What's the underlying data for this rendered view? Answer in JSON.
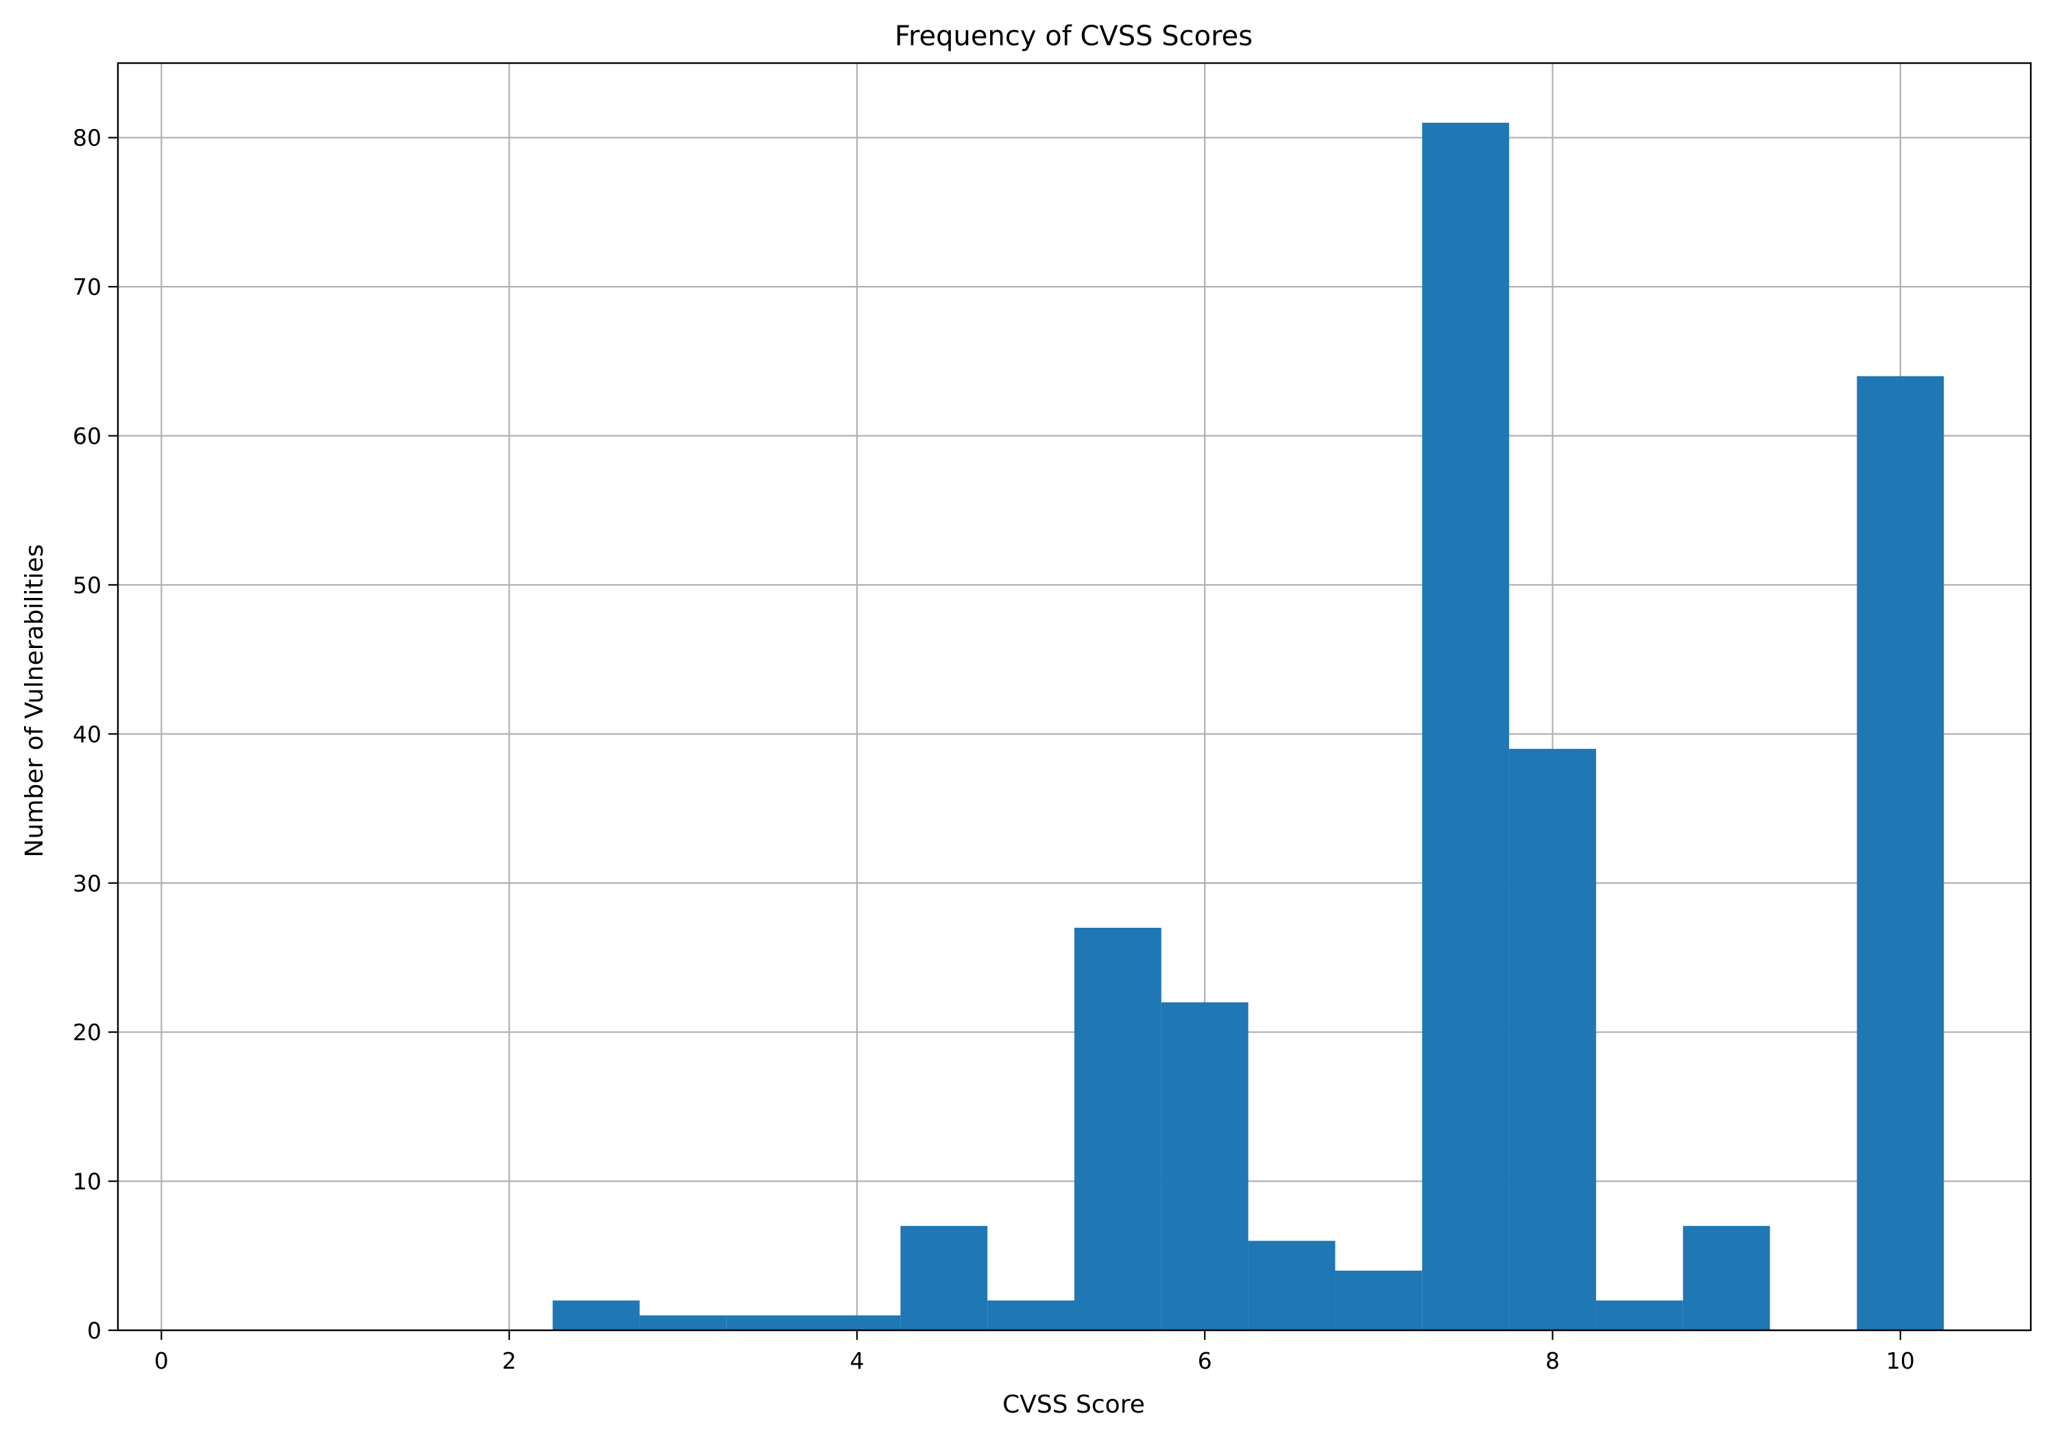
{
  "chart_data": {
    "type": "bar",
    "title": "Frequency of CVSS Scores",
    "xlabel": "CVSS Score",
    "ylabel": "Number of Vulnerabilities",
    "xlim": [
      -0.25,
      10.75
    ],
    "ylim": [
      0,
      85
    ],
    "xticks": [
      0,
      2,
      4,
      6,
      8,
      10
    ],
    "yticks": [
      0,
      10,
      20,
      30,
      40,
      50,
      60,
      70,
      80
    ],
    "grid": true,
    "bar_color": "#1f77b4",
    "bins": [
      {
        "start": 2.25,
        "end": 2.75,
        "count": 2
      },
      {
        "start": 2.75,
        "end": 3.25,
        "count": 1
      },
      {
        "start": 3.25,
        "end": 3.75,
        "count": 1
      },
      {
        "start": 3.75,
        "end": 4.25,
        "count": 1
      },
      {
        "start": 4.25,
        "end": 4.75,
        "count": 7
      },
      {
        "start": 4.75,
        "end": 5.25,
        "count": 2
      },
      {
        "start": 5.25,
        "end": 5.75,
        "count": 27
      },
      {
        "start": 5.75,
        "end": 6.25,
        "count": 22
      },
      {
        "start": 6.25,
        "end": 6.75,
        "count": 6
      },
      {
        "start": 6.75,
        "end": 7.25,
        "count": 4
      },
      {
        "start": 7.25,
        "end": 7.75,
        "count": 81
      },
      {
        "start": 7.75,
        "end": 8.25,
        "count": 39
      },
      {
        "start": 8.25,
        "end": 8.75,
        "count": 2
      },
      {
        "start": 8.75,
        "end": 9.25,
        "count": 7
      },
      {
        "start": 9.25,
        "end": 9.75,
        "count": 0
      },
      {
        "start": 9.75,
        "end": 10.25,
        "count": 64
      }
    ]
  }
}
